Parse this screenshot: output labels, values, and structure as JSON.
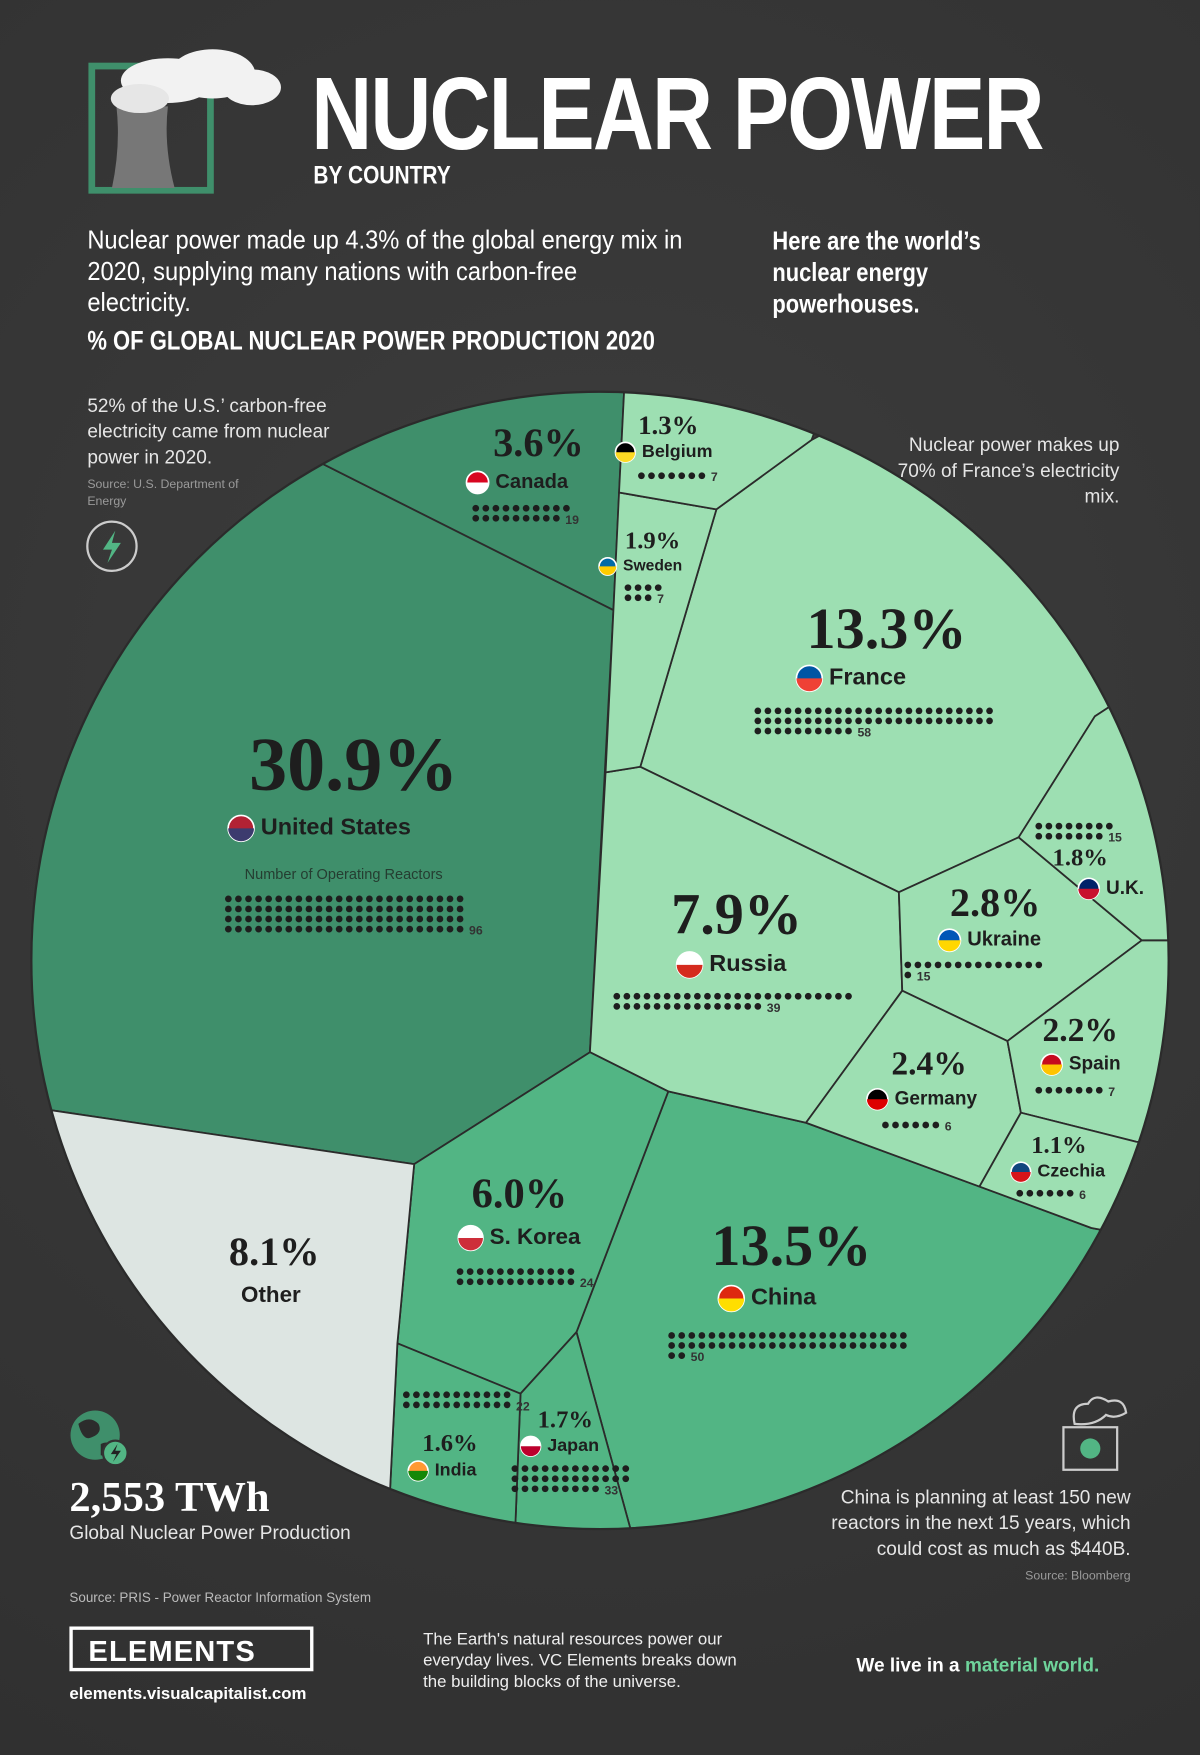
{
  "header": {
    "title": "NUCLEAR POWER",
    "subtitle": "BY COUNTRY",
    "intro": "Nuclear power made up 4.3% of the global energy mix in 2020, supplying many nations with carbon-free electricity.",
    "intro_right": "Here are the world’s nuclear energy powerhouses."
  },
  "chart_data": {
    "type": "voronoi",
    "title": "% OF GLOBAL NUCLEAR POWER PRODUCTION 2020",
    "categories": [
      "United States",
      "China",
      "France",
      "Russia",
      "S. Korea",
      "Canada",
      "Ukraine",
      "Germany",
      "Spain",
      "Sweden",
      "U.K.",
      "Japan",
      "India",
      "Belgium",
      "Czechia",
      "Other"
    ],
    "values": [
      30.9,
      13.5,
      13.3,
      7.9,
      6.0,
      3.6,
      2.8,
      2.4,
      2.2,
      1.9,
      1.8,
      1.7,
      1.6,
      1.3,
      1.1,
      8.1
    ],
    "value_labels": [
      "30.9%",
      "13.5%",
      "13.3%",
      "7.9%",
      "6.0%",
      "3.6%",
      "2.8%",
      "2.4%",
      "2.2%",
      "1.9%",
      "1.8%",
      "1.7%",
      "1.6%",
      "1.3%",
      "1.1%",
      "8.1%"
    ],
    "reactors": [
      96,
      50,
      58,
      39,
      24,
      19,
      15,
      6,
      7,
      7,
      15,
      33,
      22,
      7,
      6,
      null
    ],
    "reactors_label": "Number of Operating Reactors",
    "colors": [
      "#3f8f6b",
      "#52b584",
      "#9ddfb2",
      "#9ddfb2",
      "#52b584",
      "#3f8f6b",
      "#9ddfb2",
      "#9ddfb2",
      "#9ddfb2",
      "#9ddfb2",
      "#9ddfb2",
      "#52b584",
      "#52b584",
      "#9ddfb2",
      "#9ddfb2",
      "#dde5e2"
    ]
  },
  "notes": {
    "us": "52% of the U.S.’ carbon-free electricity came from nuclear power in 2020.",
    "us_source": "Source: U.S. Department of Energy",
    "france": "Nuclear power makes up 70% of France’s electricity mix.",
    "china": "China is planning at least 150 new reactors in the next 15 years, which could cost as much as $440B.",
    "china_source": "Source: Bloomberg"
  },
  "total": {
    "value": "2,553 TWh",
    "label": "Global Nuclear Power Production"
  },
  "footer": {
    "source": "Source: PRIS - Power Reactor Information System",
    "brand": "ELEMENTS",
    "url": "elements.visualcapitalist.com",
    "tagline": "The Earth's natural resources power our everyday lives. VC Elements breaks down the building blocks of the universe.",
    "motto_start": "We live in a",
    "motto_end": "material world."
  }
}
